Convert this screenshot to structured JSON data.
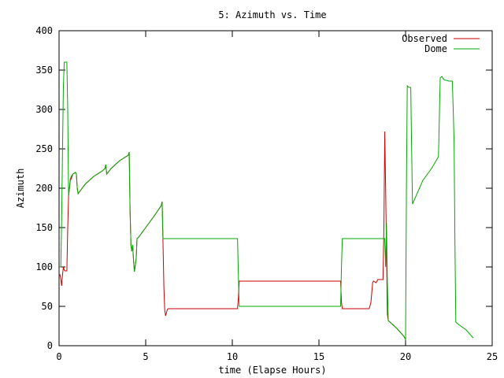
{
  "chart_data": {
    "type": "line",
    "title": "5: Azimuth vs. Time",
    "xlabel": "time (Elapse Hours)",
    "ylabel": "Azimuth",
    "xlim": [
      0,
      25
    ],
    "ylim": [
      0,
      400
    ],
    "xticks": [
      0,
      5,
      10,
      15,
      20,
      25
    ],
    "yticks": [
      0,
      50,
      100,
      150,
      200,
      250,
      300,
      350,
      400
    ],
    "grid": false,
    "legend_position": "top-right",
    "series": [
      {
        "name": "Observed",
        "color": "#cc0000",
        "points": [
          [
            0,
            88
          ],
          [
            0.05,
            90
          ],
          [
            0.1,
            85
          ],
          [
            0.15,
            76
          ],
          [
            0.2,
            90
          ],
          [
            0.25,
            100
          ],
          [
            0.3,
            96
          ],
          [
            0.35,
            95
          ],
          [
            0.45,
            95
          ],
          [
            0.5,
            150
          ],
          [
            0.55,
            190
          ],
          [
            0.6,
            200
          ],
          [
            0.65,
            210
          ],
          [
            0.7,
            212
          ],
          [
            0.8,
            218
          ],
          [
            0.95,
            220
          ],
          [
            1.0,
            218
          ],
          [
            1.05,
            200
          ],
          [
            1.1,
            193
          ],
          [
            1.5,
            205
          ],
          [
            2.0,
            215
          ],
          [
            2.5,
            222
          ],
          [
            2.65,
            225
          ],
          [
            2.7,
            230
          ],
          [
            2.75,
            218
          ],
          [
            2.9,
            222
          ],
          [
            3.0,
            225
          ],
          [
            3.5,
            235
          ],
          [
            4.0,
            242
          ],
          [
            4.05,
            246
          ],
          [
            4.1,
            170
          ],
          [
            4.15,
            128
          ],
          [
            4.2,
            120
          ],
          [
            4.25,
            128
          ],
          [
            4.3,
            108
          ],
          [
            4.35,
            94
          ],
          [
            4.45,
            110
          ],
          [
            4.5,
            136
          ],
          [
            4.6,
            138
          ],
          [
            5.0,
            150
          ],
          [
            5.5,
            165
          ],
          [
            5.9,
            178
          ],
          [
            5.95,
            183
          ],
          [
            6.0,
            130
          ],
          [
            6.05,
            75
          ],
          [
            6.1,
            45
          ],
          [
            6.15,
            38
          ],
          [
            6.2,
            42
          ],
          [
            6.25,
            46
          ],
          [
            6.3,
            47
          ],
          [
            10.3,
            47
          ],
          [
            10.35,
            60
          ],
          [
            10.4,
            82
          ],
          [
            16.25,
            82
          ],
          [
            16.3,
            55
          ],
          [
            16.35,
            47
          ],
          [
            17.9,
            47
          ],
          [
            18.0,
            55
          ],
          [
            18.1,
            80
          ],
          [
            18.15,
            82
          ],
          [
            18.3,
            80
          ],
          [
            18.4,
            84
          ],
          [
            18.7,
            84
          ],
          [
            18.75,
            150
          ],
          [
            18.8,
            272
          ],
          [
            18.85,
            200
          ],
          [
            18.9,
            120
          ],
          [
            18.95,
            40
          ],
          [
            19.0,
            32
          ],
          [
            19.5,
            22
          ],
          [
            19.9,
            12
          ],
          [
            20.0,
            8
          ]
        ]
      },
      {
        "name": "Dome",
        "color": "#00aa00",
        "points": [
          [
            0,
            100
          ],
          [
            0.1,
            100
          ],
          [
            0.15,
            160
          ],
          [
            0.2,
            250
          ],
          [
            0.25,
            330
          ],
          [
            0.3,
            360
          ],
          [
            0.45,
            360
          ],
          [
            0.5,
            300
          ],
          [
            0.55,
            190
          ],
          [
            0.6,
            200
          ],
          [
            0.65,
            212
          ],
          [
            0.7,
            215
          ],
          [
            0.8,
            218
          ],
          [
            0.95,
            220
          ],
          [
            1.0,
            218
          ],
          [
            1.05,
            200
          ],
          [
            1.1,
            193
          ],
          [
            1.5,
            205
          ],
          [
            2.0,
            215
          ],
          [
            2.5,
            222
          ],
          [
            2.65,
            225
          ],
          [
            2.7,
            230
          ],
          [
            2.75,
            218
          ],
          [
            2.9,
            222
          ],
          [
            3.0,
            225
          ],
          [
            3.5,
            235
          ],
          [
            4.0,
            242
          ],
          [
            4.05,
            246
          ],
          [
            4.1,
            170
          ],
          [
            4.15,
            128
          ],
          [
            4.2,
            120
          ],
          [
            4.25,
            128
          ],
          [
            4.3,
            108
          ],
          [
            4.35,
            94
          ],
          [
            4.45,
            110
          ],
          [
            4.5,
            136
          ],
          [
            4.6,
            138
          ],
          [
            5.0,
            150
          ],
          [
            5.5,
            165
          ],
          [
            5.9,
            178
          ],
          [
            5.95,
            183
          ],
          [
            6.0,
            136
          ],
          [
            10.3,
            136
          ],
          [
            10.35,
            90
          ],
          [
            10.4,
            50
          ],
          [
            16.25,
            50
          ],
          [
            16.3,
            100
          ],
          [
            16.35,
            136
          ],
          [
            18.8,
            136
          ],
          [
            18.85,
            100
          ],
          [
            18.9,
            156
          ],
          [
            18.95,
            80
          ],
          [
            19.0,
            32
          ],
          [
            19.5,
            22
          ],
          [
            19.9,
            12
          ],
          [
            20.0,
            8
          ],
          [
            20.05,
            200
          ],
          [
            20.1,
            330
          ],
          [
            20.2,
            328
          ],
          [
            20.3,
            328
          ],
          [
            20.35,
            250
          ],
          [
            20.4,
            180
          ],
          [
            21.0,
            210
          ],
          [
            21.5,
            225
          ],
          [
            21.9,
            240
          ],
          [
            22.0,
            340
          ],
          [
            22.1,
            342
          ],
          [
            22.2,
            338
          ],
          [
            22.5,
            336
          ],
          [
            22.7,
            336
          ],
          [
            22.75,
            300
          ],
          [
            22.8,
            260
          ],
          [
            22.85,
            130
          ],
          [
            22.9,
            30
          ],
          [
            23.0,
            28
          ],
          [
            23.5,
            20
          ],
          [
            23.9,
            10
          ]
        ]
      }
    ]
  }
}
